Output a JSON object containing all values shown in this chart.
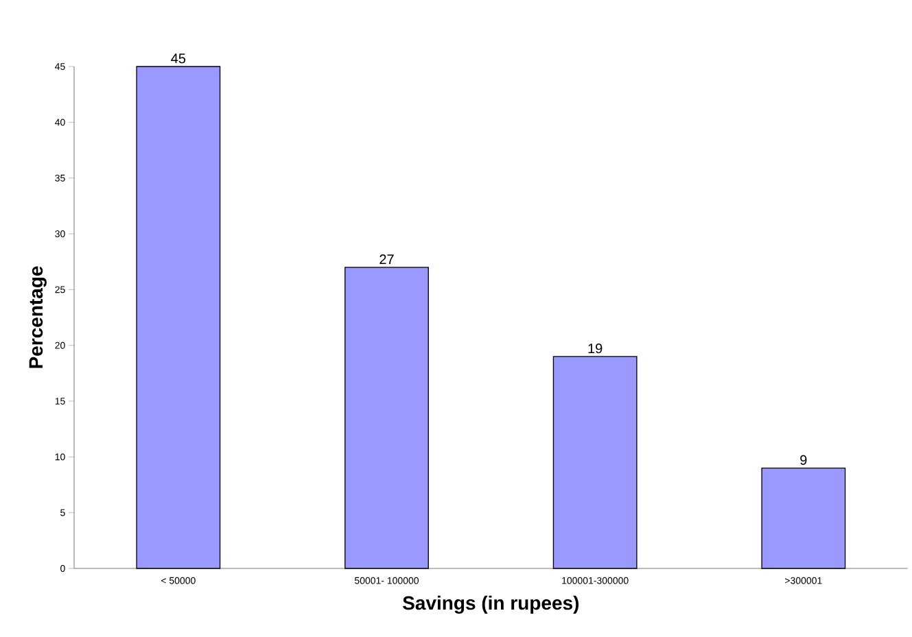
{
  "chart_data": {
    "type": "bar",
    "xlabel": "Savings (in rupees)",
    "ylabel": "Percentage",
    "categories": [
      "< 50000",
      "50001- 100000",
      "100001-300000",
      ">300001"
    ],
    "values": [
      45,
      27,
      19,
      9
    ],
    "color": "#9999ff",
    "data_labels": true,
    "ylim": [
      0,
      45
    ],
    "yticks": [
      0,
      5,
      10,
      15,
      20,
      25,
      30,
      35,
      40,
      45
    ],
    "grid": false
  }
}
